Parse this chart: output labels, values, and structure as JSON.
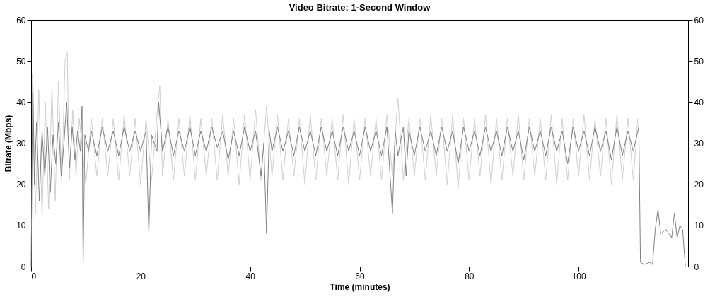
{
  "chart_data": {
    "type": "line",
    "title": "Video Bitrate: 1-Second Window",
    "xlabel": "Time (minutes)",
    "ylabel": "Bitrate (Mbps)",
    "xlim": [
      0,
      120
    ],
    "xticks": [
      0,
      20,
      40,
      60,
      80,
      100
    ],
    "ylim": [
      0,
      60
    ],
    "yticks": [
      0,
      10,
      20,
      30,
      40,
      50,
      60
    ],
    "y2lim": [
      0,
      60
    ],
    "y2ticks": [
      0,
      10,
      20,
      30,
      40,
      50,
      60
    ],
    "grid": false,
    "legend": false,
    "marker": "none",
    "line_style": "solid",
    "series": [
      {
        "color": "#d0d0d0",
        "x": [
          0.2,
          0.8,
          1.4,
          2,
          2.6,
          3.2,
          3.8,
          4.4,
          5,
          5.6,
          6.2,
          6.6,
          7,
          7.6,
          8.2,
          8.8,
          10,
          11,
          12,
          13,
          14,
          15,
          16,
          17,
          18,
          19,
          20,
          21,
          22,
          23,
          23.5,
          24,
          25,
          26,
          27,
          28,
          29,
          30,
          31,
          32,
          33,
          34,
          35,
          36,
          37,
          38,
          39,
          40,
          41,
          42,
          43,
          44,
          45,
          46,
          47,
          48,
          49,
          50,
          51,
          52,
          53,
          54,
          55,
          56,
          57,
          58,
          59,
          60,
          61,
          62,
          63,
          64,
          65,
          66,
          67,
          68,
          69,
          70,
          71,
          72,
          73,
          74,
          75,
          76,
          77,
          78,
          79,
          80,
          81,
          82,
          83,
          84,
          85,
          86,
          87,
          88,
          89,
          90,
          91,
          92,
          93,
          94,
          95,
          96,
          97,
          98,
          99,
          100,
          101,
          102,
          103,
          104,
          105,
          106,
          107,
          108,
          109,
          110,
          110.8
        ],
        "values": [
          42,
          13,
          43,
          12,
          40,
          14,
          44,
          16,
          45,
          20,
          50,
          52,
          21,
          38,
          22,
          36,
          20,
          36,
          22,
          36,
          22,
          36,
          21,
          37,
          22,
          36,
          20,
          36,
          21,
          37,
          44,
          22,
          36,
          21,
          36,
          22,
          37,
          21,
          36,
          22,
          36,
          21,
          37,
          22,
          36,
          20,
          37,
          21,
          38,
          21,
          39,
          22,
          37,
          21,
          36,
          22,
          36,
          20,
          37,
          21,
          36,
          22,
          36,
          21,
          37,
          20,
          36,
          21,
          36,
          22,
          36,
          21,
          37,
          22,
          41,
          21,
          36,
          22,
          36,
          21,
          37,
          22,
          36,
          20,
          37,
          19,
          36,
          21,
          36,
          22,
          37,
          20,
          36,
          21,
          36,
          22,
          37,
          21,
          36,
          22,
          36,
          21,
          37,
          20,
          36,
          21,
          36,
          22,
          37,
          21,
          36,
          22,
          36,
          20,
          37,
          21,
          36,
          21,
          36
        ]
      },
      {
        "color": "#808080",
        "x": [
          0,
          0.3,
          0.6,
          1,
          1.5,
          2,
          2.5,
          3,
          3.5,
          4,
          4.5,
          5,
          5.5,
          6,
          6.5,
          7,
          7.5,
          8,
          8.5,
          9,
          9.3,
          9.5,
          9.8,
          10.5,
          11,
          12,
          13,
          14,
          15,
          16,
          17,
          18,
          19,
          20,
          21,
          21.5,
          22,
          23,
          23.3,
          24,
          25,
          26,
          27,
          28,
          29,
          30,
          31,
          32,
          33,
          34,
          35,
          36,
          37,
          38,
          39,
          40,
          41,
          42,
          42.5,
          43,
          43.5,
          44,
          45,
          46,
          47,
          48,
          49,
          50,
          51,
          52,
          53,
          54,
          55,
          56,
          57,
          58,
          59,
          60,
          61,
          62,
          63,
          64,
          65,
          66,
          66.5,
          67,
          68,
          68.5,
          69,
          70,
          71,
          72,
          73,
          74,
          75,
          76,
          77,
          78,
          79,
          80,
          81,
          82,
          83,
          84,
          85,
          86,
          87,
          88,
          89,
          90,
          91,
          92,
          93,
          94,
          95,
          96,
          97,
          98,
          99,
          100,
          101,
          102,
          103,
          104,
          105,
          106,
          107,
          108,
          109,
          110,
          111,
          111.3,
          112,
          113,
          113.5,
          114,
          114.5,
          115,
          116,
          116.5,
          117,
          117.5,
          118,
          118.5,
          119,
          119.5
        ],
        "values": [
          0,
          47,
          20,
          35,
          16,
          33,
          22,
          34,
          18,
          32,
          25,
          35,
          22,
          30,
          40,
          24,
          34,
          26,
          33,
          28,
          39,
          0,
          32,
          28,
          33,
          27,
          34,
          28,
          33,
          27,
          34,
          28,
          33,
          28,
          33,
          8,
          32,
          28,
          40,
          28,
          34,
          27,
          33,
          28,
          34,
          27,
          33,
          28,
          34,
          29,
          33,
          26,
          33,
          27,
          34,
          28,
          33,
          22,
          30,
          8,
          33,
          28,
          34,
          28,
          33,
          27,
          34,
          28,
          33,
          27,
          34,
          28,
          33,
          27,
          34,
          28,
          33,
          27,
          34,
          28,
          33,
          27,
          34,
          13,
          33,
          27,
          34,
          22,
          33,
          27,
          34,
          28,
          33,
          27,
          34,
          28,
          33,
          25,
          34,
          28,
          33,
          27,
          34,
          28,
          33,
          27,
          34,
          28,
          33,
          26,
          34,
          28,
          33,
          27,
          34,
          28,
          33,
          25,
          34,
          28,
          33,
          27,
          34,
          28,
          33,
          26,
          34,
          27,
          33,
          28,
          34,
          1,
          0.5,
          1,
          0.5,
          9,
          14,
          8,
          9,
          8,
          7,
          13,
          7,
          10,
          9,
          0
        ]
      }
    ]
  }
}
